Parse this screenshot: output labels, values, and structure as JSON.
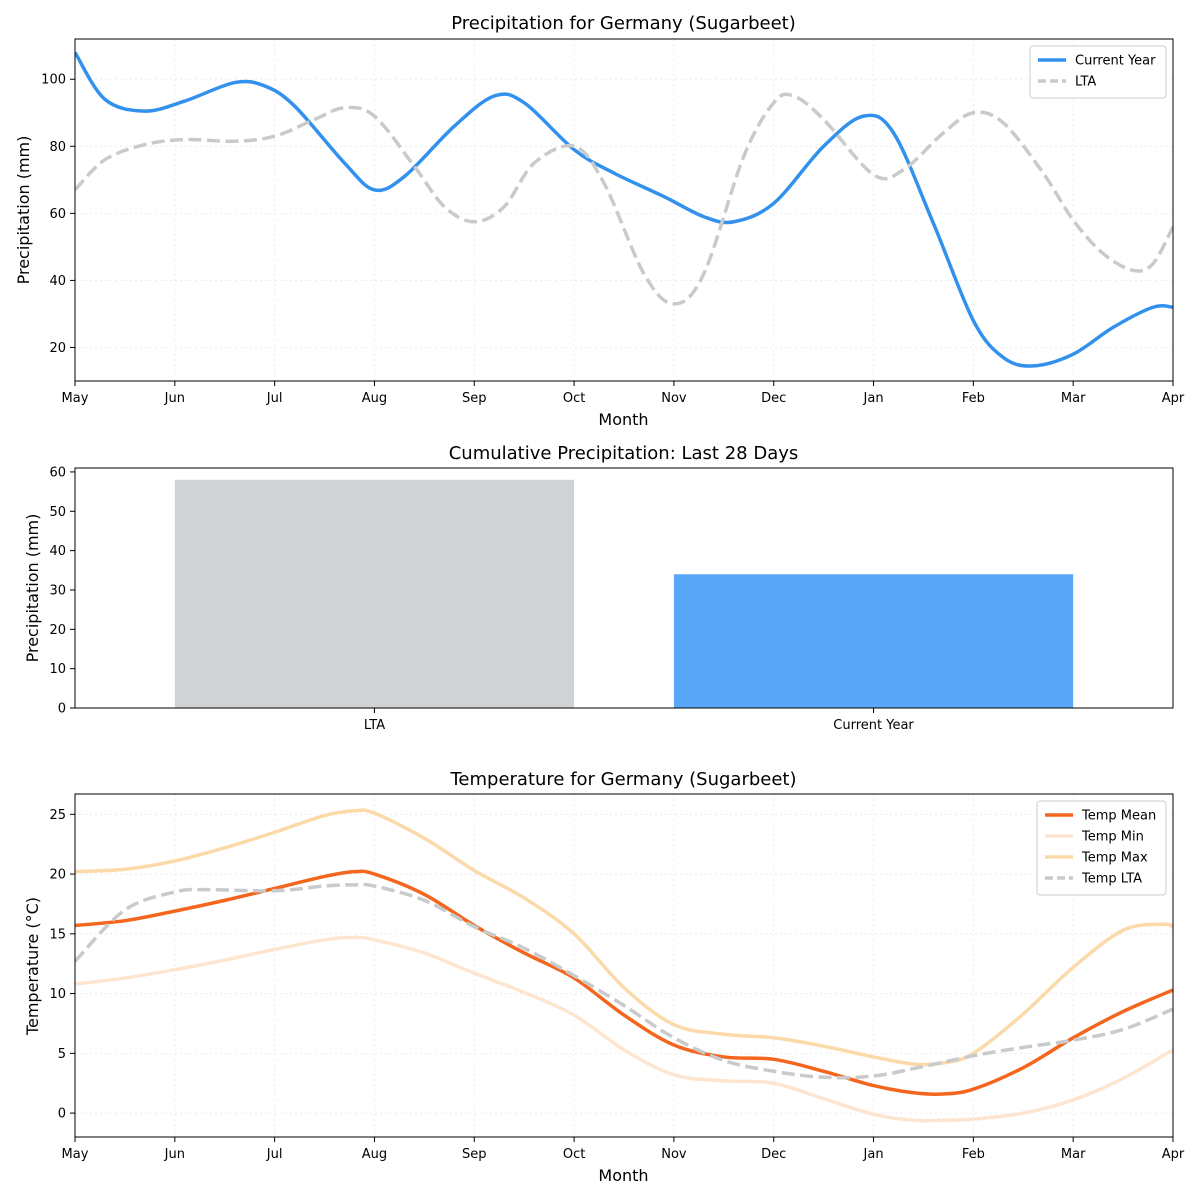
{
  "chart_data": [
    {
      "type": "line",
      "title": "Precipitation for Germany (Sugarbeet)",
      "xlabel": "Month",
      "ylabel": "Precipitation (mm)",
      "x_ticks": [
        "May",
        "Jun",
        "Jul",
        "Aug",
        "Sep",
        "Oct",
        "Nov",
        "Dec",
        "Jan",
        "Feb",
        "Mar",
        "Apr"
      ],
      "xlim": [
        0,
        11
      ],
      "ylim": [
        10,
        112
      ],
      "y_ticks": [
        20,
        40,
        60,
        80,
        100
      ],
      "grid": true,
      "legend": "top-right",
      "series": [
        {
          "name": "Current Year",
          "color": "#3391ee",
          "style": "solid",
          "points": [
            [
              0,
              108
            ],
            [
              0.3,
              94
            ],
            [
              0.7,
              90.5
            ],
            [
              1.1,
              93.5
            ],
            [
              1.6,
              99
            ],
            [
              1.9,
              98
            ],
            [
              2.2,
              92
            ],
            [
              2.7,
              75
            ],
            [
              3.0,
              67
            ],
            [
              3.3,
              71
            ],
            [
              3.8,
              86
            ],
            [
              4.2,
              95
            ],
            [
              4.5,
              93
            ],
            [
              5.0,
              79
            ],
            [
              5.4,
              72
            ],
            [
              5.9,
              65
            ],
            [
              6.3,
              59
            ],
            [
              6.6,
              57.5
            ],
            [
              7.0,
              63
            ],
            [
              7.5,
              80
            ],
            [
              7.9,
              89
            ],
            [
              8.2,
              84
            ],
            [
              8.6,
              57
            ],
            [
              9.0,
              28
            ],
            [
              9.3,
              17
            ],
            [
              9.6,
              14.5
            ],
            [
              10.0,
              18
            ],
            [
              10.4,
              26
            ],
            [
              10.8,
              32
            ],
            [
              11.0,
              32
            ]
          ]
        },
        {
          "name": "LTA",
          "color": "#c9cacb",
          "style": "dashed",
          "points": [
            [
              0,
              67
            ],
            [
              0.3,
              76
            ],
            [
              0.7,
              80.5
            ],
            [
              1.1,
              82
            ],
            [
              1.6,
              81.5
            ],
            [
              2.0,
              83
            ],
            [
              2.4,
              88
            ],
            [
              2.7,
              91.5
            ],
            [
              3.0,
              89
            ],
            [
              3.4,
              74
            ],
            [
              3.7,
              62
            ],
            [
              4.0,
              57.5
            ],
            [
              4.3,
              62
            ],
            [
              4.6,
              75
            ],
            [
              5.0,
              80
            ],
            [
              5.3,
              69
            ],
            [
              5.7,
              42
            ],
            [
              6.0,
              33
            ],
            [
              6.3,
              42
            ],
            [
              6.7,
              77
            ],
            [
              7.0,
              93
            ],
            [
              7.2,
              95
            ],
            [
              7.5,
              88
            ],
            [
              8.0,
              71.5
            ],
            [
              8.3,
              73
            ],
            [
              8.7,
              84
            ],
            [
              9.0,
              90
            ],
            [
              9.3,
              87
            ],
            [
              9.7,
              72
            ],
            [
              10.0,
              58
            ],
            [
              10.3,
              48
            ],
            [
              10.6,
              43
            ],
            [
              10.8,
              45
            ],
            [
              11.0,
              56
            ]
          ]
        }
      ]
    },
    {
      "type": "bar",
      "title": "Cumulative Precipitation: Last 28 Days",
      "ylabel": "Precipitation (mm)",
      "categories": [
        "LTA",
        "Current Year"
      ],
      "values": [
        58,
        34
      ],
      "colors": [
        "#d0d3d6",
        "#5aa7f9"
      ],
      "ylim": [
        0,
        61
      ],
      "y_ticks": [
        0,
        10,
        20,
        30,
        40,
        50,
        60
      ],
      "grid": false
    },
    {
      "type": "line",
      "title": "Temperature for Germany (Sugarbeet)",
      "xlabel": "Month",
      "ylabel": "Temperature (°C)",
      "x_ticks": [
        "May",
        "Jun",
        "Jul",
        "Aug",
        "Sep",
        "Oct",
        "Nov",
        "Dec",
        "Jan",
        "Feb",
        "Mar",
        "Apr"
      ],
      "xlim": [
        0,
        11
      ],
      "ylim": [
        -2,
        26.7
      ],
      "y_ticks": [
        0,
        5,
        10,
        15,
        20,
        25
      ],
      "grid": true,
      "legend": "top-right",
      "series": [
        {
          "name": "Temp Mean",
          "color": "#f4661e",
          "style": "solid",
          "points": [
            [
              0,
              15.7
            ],
            [
              0.5,
              16.1
            ],
            [
              1.0,
              16.9
            ],
            [
              1.5,
              17.8
            ],
            [
              2.0,
              18.8
            ],
            [
              2.5,
              19.8
            ],
            [
              2.8,
              20.2
            ],
            [
              3.0,
              20.0
            ],
            [
              3.5,
              18.3
            ],
            [
              4.0,
              15.7
            ],
            [
              4.5,
              13.4
            ],
            [
              5.0,
              11.3
            ],
            [
              5.5,
              8.2
            ],
            [
              6.0,
              5.7
            ],
            [
              6.5,
              4.7
            ],
            [
              7.0,
              4.5
            ],
            [
              7.5,
              3.5
            ],
            [
              8.0,
              2.3
            ],
            [
              8.4,
              1.7
            ],
            [
              8.7,
              1.6
            ],
            [
              9.0,
              2.0
            ],
            [
              9.5,
              3.8
            ],
            [
              10.0,
              6.3
            ],
            [
              10.5,
              8.5
            ],
            [
              11.0,
              10.3
            ]
          ]
        },
        {
          "name": "Temp Min",
          "color": "#fde5cf",
          "style": "solid",
          "points": [
            [
              0,
              10.8
            ],
            [
              0.5,
              11.3
            ],
            [
              1.0,
              12.0
            ],
            [
              1.5,
              12.8
            ],
            [
              2.0,
              13.7
            ],
            [
              2.5,
              14.5
            ],
            [
              2.8,
              14.7
            ],
            [
              3.0,
              14.5
            ],
            [
              3.5,
              13.4
            ],
            [
              4.0,
              11.7
            ],
            [
              4.5,
              10.1
            ],
            [
              5.0,
              8.2
            ],
            [
              5.5,
              5.3
            ],
            [
              6.0,
              3.2
            ],
            [
              6.5,
              2.7
            ],
            [
              7.0,
              2.5
            ],
            [
              7.5,
              1.2
            ],
            [
              8.0,
              -0.1
            ],
            [
              8.4,
              -0.6
            ],
            [
              8.7,
              -0.6
            ],
            [
              9.0,
              -0.5
            ],
            [
              9.5,
              0.0
            ],
            [
              10.0,
              1.1
            ],
            [
              10.5,
              2.9
            ],
            [
              11.0,
              5.3
            ]
          ]
        },
        {
          "name": "Temp Max",
          "color": "#fbd9a8",
          "style": "solid",
          "points": [
            [
              0,
              20.2
            ],
            [
              0.5,
              20.4
            ],
            [
              1.0,
              21.1
            ],
            [
              1.5,
              22.2
            ],
            [
              2.0,
              23.5
            ],
            [
              2.5,
              24.9
            ],
            [
              2.8,
              25.3
            ],
            [
              3.0,
              25.1
            ],
            [
              3.5,
              23.0
            ],
            [
              4.0,
              20.3
            ],
            [
              4.5,
              18.0
            ],
            [
              5.0,
              15.0
            ],
            [
              5.5,
              10.5
            ],
            [
              6.0,
              7.4
            ],
            [
              6.5,
              6.6
            ],
            [
              7.0,
              6.3
            ],
            [
              7.5,
              5.6
            ],
            [
              8.0,
              4.7
            ],
            [
              8.4,
              4.1
            ],
            [
              8.7,
              4.2
            ],
            [
              9.0,
              5.0
            ],
            [
              9.5,
              8.3
            ],
            [
              10.0,
              12.2
            ],
            [
              10.5,
              15.3
            ],
            [
              10.9,
              15.8
            ],
            [
              11.0,
              15.6
            ]
          ]
        },
        {
          "name": "Temp LTA",
          "color": "#c9cacb",
          "style": "dashed",
          "points": [
            [
              0,
              12.7
            ],
            [
              0.5,
              17.0
            ],
            [
              1.0,
              18.5
            ],
            [
              1.3,
              18.7
            ],
            [
              2.0,
              18.6
            ],
            [
              2.5,
              19.0
            ],
            [
              2.8,
              19.1
            ],
            [
              3.0,
              19.0
            ],
            [
              3.5,
              17.8
            ],
            [
              4.0,
              15.6
            ],
            [
              4.5,
              13.8
            ],
            [
              5.0,
              11.5
            ],
            [
              5.5,
              9.0
            ],
            [
              6.0,
              6.3
            ],
            [
              6.5,
              4.4
            ],
            [
              7.0,
              3.5
            ],
            [
              7.5,
              3.0
            ],
            [
              8.0,
              3.1
            ],
            [
              8.5,
              3.9
            ],
            [
              9.0,
              4.8
            ],
            [
              9.5,
              5.5
            ],
            [
              10.0,
              6.1
            ],
            [
              10.5,
              7.0
            ],
            [
              11.0,
              8.7
            ]
          ]
        }
      ]
    }
  ]
}
